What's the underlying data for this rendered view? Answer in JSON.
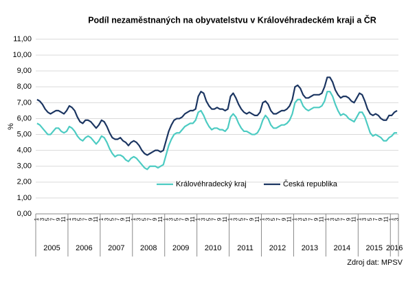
{
  "chart_data": {
    "type": "line",
    "title": "Podíl nezaměstnaných  na obyvatelstvu  v Královéhradeckém  kraji a ČR",
    "y_label": "%",
    "source": "Zdroj dat: MPSV",
    "years": [
      "2005",
      "2006",
      "2007",
      "2008",
      "2009",
      "2010",
      "2011",
      "2012",
      "2013",
      "2014",
      "2015",
      "2016"
    ],
    "categories": [
      "1",
      null,
      "3",
      null,
      "5",
      null,
      "7",
      null,
      "9",
      null,
      "11",
      null,
      "1",
      null,
      "3",
      null,
      "5",
      null,
      "7",
      null,
      "9",
      null,
      "11",
      null,
      "1",
      null,
      "3",
      null,
      "5",
      null,
      "7",
      null,
      "9",
      null,
      "11",
      null,
      "1",
      null,
      "3",
      null,
      "5",
      null,
      "7",
      null,
      "9",
      null,
      "11",
      null,
      "1",
      null,
      "3",
      null,
      "5",
      null,
      "7",
      null,
      "9",
      null,
      "11",
      null,
      "1",
      null,
      "3",
      null,
      "5",
      null,
      "7",
      null,
      "9",
      null,
      "11",
      null,
      "1",
      null,
      "3",
      null,
      "5",
      null,
      "7",
      null,
      "9",
      null,
      "11",
      null,
      "1",
      null,
      "3",
      null,
      "5",
      null,
      "7",
      null,
      "9",
      null,
      "11",
      null,
      "1",
      null,
      "3",
      null,
      "5",
      null,
      "7",
      null,
      "9",
      null,
      "11",
      null,
      "1",
      null,
      "3",
      null,
      "5",
      null,
      "7",
      null,
      "9",
      null,
      "11",
      null,
      "1",
      null,
      "3",
      null,
      "5",
      null,
      "7",
      null,
      "9",
      null,
      "11",
      null,
      "1",
      null,
      "3"
    ],
    "series": [
      {
        "name": "Královéhradecký kraj",
        "color": "#4ccbc2",
        "values": [
          5.7,
          5.6,
          5.4,
          5.2,
          5.0,
          5.0,
          5.2,
          5.4,
          5.4,
          5.2,
          5.1,
          5.2,
          5.5,
          5.4,
          5.2,
          4.9,
          4.7,
          4.6,
          4.8,
          4.9,
          4.8,
          4.6,
          4.4,
          4.6,
          4.9,
          4.8,
          4.5,
          4.1,
          3.8,
          3.6,
          3.7,
          3.7,
          3.6,
          3.4,
          3.3,
          3.5,
          3.6,
          3.5,
          3.3,
          3.1,
          2.9,
          2.8,
          3.0,
          3.0,
          3.0,
          2.9,
          3.0,
          3.1,
          3.7,
          4.3,
          4.7,
          5.0,
          5.1,
          5.1,
          5.3,
          5.5,
          5.6,
          5.7,
          5.7,
          5.9,
          6.4,
          6.5,
          6.2,
          5.8,
          5.5,
          5.3,
          5.4,
          5.4,
          5.3,
          5.3,
          5.2,
          5.4,
          6.1,
          6.3,
          6.1,
          5.7,
          5.4,
          5.2,
          5.2,
          5.1,
          5.0,
          5.0,
          5.1,
          5.4,
          5.9,
          6.2,
          6.0,
          5.6,
          5.4,
          5.4,
          5.5,
          5.6,
          5.6,
          5.7,
          5.9,
          6.3,
          7.0,
          7.2,
          7.2,
          6.8,
          6.6,
          6.5,
          6.6,
          6.7,
          6.7,
          6.7,
          6.8,
          7.1,
          7.7,
          7.7,
          7.4,
          6.9,
          6.5,
          6.2,
          6.3,
          6.2,
          6.0,
          5.9,
          5.8,
          6.1,
          6.4,
          6.4,
          6.1,
          5.6,
          5.1,
          4.9,
          5.0,
          4.9,
          4.8,
          4.6,
          4.6,
          4.8,
          4.9,
          5.1,
          5.1
        ]
      },
      {
        "name": "Česká republika",
        "color": "#1b3561",
        "values": [
          7.2,
          7.1,
          6.9,
          6.6,
          6.4,
          6.3,
          6.4,
          6.5,
          6.5,
          6.4,
          6.3,
          6.5,
          6.8,
          6.7,
          6.5,
          6.1,
          5.8,
          5.7,
          5.9,
          5.9,
          5.8,
          5.6,
          5.4,
          5.6,
          5.9,
          5.8,
          5.5,
          5.1,
          4.8,
          4.7,
          4.7,
          4.8,
          4.6,
          4.5,
          4.3,
          4.5,
          4.6,
          4.5,
          4.3,
          4.0,
          3.8,
          3.7,
          3.8,
          3.9,
          4.0,
          4.0,
          3.9,
          4.0,
          4.6,
          5.2,
          5.6,
          5.9,
          6.0,
          6.0,
          6.1,
          6.3,
          6.4,
          6.5,
          6.5,
          6.6,
          7.4,
          7.7,
          7.6,
          7.1,
          6.8,
          6.6,
          6.6,
          6.7,
          6.6,
          6.6,
          6.5,
          6.6,
          7.4,
          7.6,
          7.3,
          6.9,
          6.6,
          6.4,
          6.3,
          6.4,
          6.3,
          6.2,
          6.2,
          6.4,
          7.0,
          7.1,
          6.9,
          6.5,
          6.3,
          6.3,
          6.4,
          6.5,
          6.5,
          6.6,
          6.8,
          7.2,
          8.0,
          8.1,
          7.9,
          7.5,
          7.3,
          7.3,
          7.4,
          7.5,
          7.5,
          7.5,
          7.6,
          8.0,
          8.6,
          8.6,
          8.3,
          7.8,
          7.5,
          7.3,
          7.4,
          7.4,
          7.3,
          7.1,
          7.0,
          7.3,
          7.6,
          7.5,
          7.1,
          6.6,
          6.3,
          6.2,
          6.3,
          6.2,
          6.0,
          5.9,
          5.9,
          6.2,
          6.2,
          6.4,
          6.5
        ]
      }
    ],
    "ylim": [
      0,
      11
    ],
    "yticks": [
      {
        "value": 0,
        "label": "0,00"
      },
      {
        "value": 1,
        "label": "1,00"
      },
      {
        "value": 2,
        "label": "2,00"
      },
      {
        "value": 3,
        "label": "3,00"
      },
      {
        "value": 4,
        "label": "4,00"
      },
      {
        "value": 5,
        "label": "5,00"
      },
      {
        "value": 6,
        "label": "6,00"
      },
      {
        "value": 7,
        "label": "7,00"
      },
      {
        "value": 8,
        "label": "8,00"
      },
      {
        "value": 9,
        "label": "9,00"
      },
      {
        "value": 10,
        "label": "10,00"
      },
      {
        "value": 11,
        "label": "11,00"
      }
    ],
    "grid": true,
    "legend": "inside"
  }
}
